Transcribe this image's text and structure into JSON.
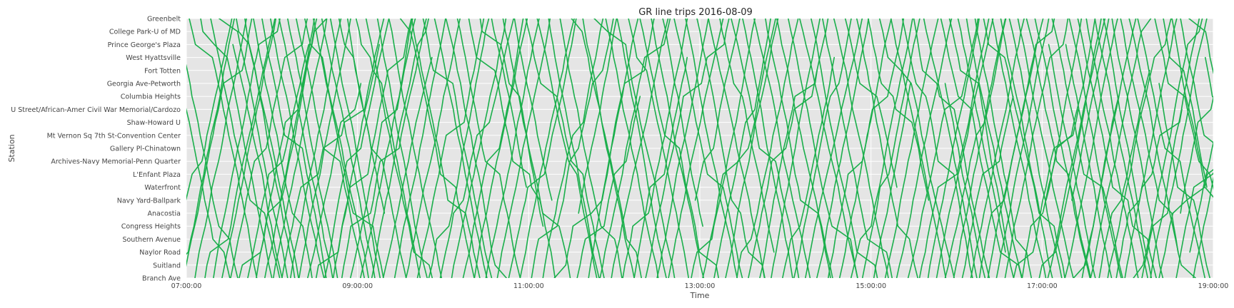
{
  "chart_data": {
    "type": "line",
    "title": "GR line trips 2016-08-09",
    "xlabel": "Time",
    "ylabel": "Station",
    "x_ticks": [
      "07:00:00",
      "09:00:00",
      "11:00:00",
      "13:00:00",
      "15:00:00",
      "17:00:00",
      "19:00:00"
    ],
    "xlim": [
      "07:00:00",
      "19:00:00"
    ],
    "stations": [
      "Greenbelt",
      "College Park-U of MD",
      "Prince George's Plaza",
      "West Hyattsville",
      "Fort Totten",
      "Georgia Ave-Petworth",
      "Columbia Heights",
      "U Street/African-Amer Civil War Memorial/Cardozo",
      "Shaw-Howard U",
      "Mt Vernon Sq 7th St-Convention Center",
      "Gallery Pl-Chinatown",
      "Archives-Navy Memorial-Penn Quarter",
      "L'Enfant Plaza",
      "Waterfront",
      "Navy Yard-Ballpark",
      "Anacostia",
      "Congress Heights",
      "Southern Avenue",
      "Naylor Road",
      "Suitland",
      "Branch Ave"
    ],
    "grid": true,
    "line_color": "#1aaf4b",
    "background_color": "#e5e5e5",
    "trip_count": 208,
    "trip_minutes_full_run": 36,
    "series": [
      {
        "departures_southbound": [
          "06:46",
          "06:53",
          "07:02",
          "07:10",
          "07:17",
          "07:23",
          "07:29",
          "07:35",
          "07:41",
          "07:47",
          "07:53",
          "07:59",
          "08:05",
          "08:11",
          "08:17",
          "08:23",
          "08:29",
          "08:35",
          "08:41",
          "08:47",
          "08:53",
          "08:59",
          "09:06",
          "09:14",
          "09:22",
          "09:30",
          "09:38",
          "09:46",
          "09:54",
          "10:02",
          "10:10",
          "10:18",
          "10:26",
          "10:34",
          "10:42",
          "10:50",
          "10:58",
          "11:06",
          "11:14",
          "11:22",
          "11:30",
          "11:38",
          "11:46",
          "11:54",
          "12:02",
          "12:10",
          "12:18",
          "12:26",
          "12:34",
          "12:42",
          "12:50",
          "12:58",
          "13:06",
          "13:14",
          "13:22",
          "13:30",
          "13:38",
          "13:46",
          "13:54",
          "14:02",
          "14:10",
          "14:18",
          "14:26",
          "14:34",
          "14:42",
          "14:50",
          "14:58",
          "15:06",
          "15:14",
          "15:22",
          "15:30",
          "15:37",
          "15:43",
          "15:49",
          "15:55",
          "16:01",
          "16:07",
          "16:13",
          "16:19",
          "16:25",
          "16:31",
          "16:37",
          "16:43",
          "16:49",
          "16:55",
          "17:01",
          "17:07",
          "17:13",
          "17:19",
          "17:25",
          "17:31",
          "17:37",
          "17:43",
          "17:49",
          "17:55",
          "18:01",
          "18:07",
          "18:13",
          "18:19",
          "18:25",
          "18:31",
          "18:37",
          "18:43",
          "18:49"
        ]
      },
      {
        "departures_northbound": [
          "06:42",
          "06:50",
          "06:58",
          "07:06",
          "07:13",
          "07:19",
          "07:25",
          "07:31",
          "07:37",
          "07:43",
          "07:49",
          "07:55",
          "08:01",
          "08:07",
          "08:13",
          "08:19",
          "08:25",
          "08:31",
          "08:37",
          "08:43",
          "08:49",
          "08:55",
          "09:02",
          "09:10",
          "09:18",
          "09:26",
          "09:34",
          "09:42",
          "09:50",
          "09:58",
          "10:06",
          "10:14",
          "10:22",
          "10:30",
          "10:38",
          "10:46",
          "10:54",
          "11:02",
          "11:10",
          "11:18",
          "11:26",
          "11:34",
          "11:42",
          "11:50",
          "11:58",
          "12:06",
          "12:14",
          "12:22",
          "12:30",
          "12:38",
          "12:46",
          "12:54",
          "13:02",
          "13:10",
          "13:18",
          "13:26",
          "13:34",
          "13:42",
          "13:50",
          "13:58",
          "14:06",
          "14:14",
          "14:22",
          "14:30",
          "14:38",
          "14:46",
          "14:54",
          "15:02",
          "15:10",
          "15:18",
          "15:26",
          "15:34",
          "15:40",
          "15:46",
          "15:52",
          "15:58",
          "16:04",
          "16:10",
          "16:16",
          "16:22",
          "16:28",
          "16:34",
          "16:40",
          "16:46",
          "16:52",
          "16:58",
          "17:04",
          "17:10",
          "17:16",
          "17:22",
          "17:28",
          "17:34",
          "17:40",
          "17:46",
          "17:52",
          "17:58",
          "18:04",
          "18:10",
          "18:16",
          "18:22",
          "18:28",
          "18:34",
          "18:40",
          "18:46"
        ]
      }
    ]
  }
}
